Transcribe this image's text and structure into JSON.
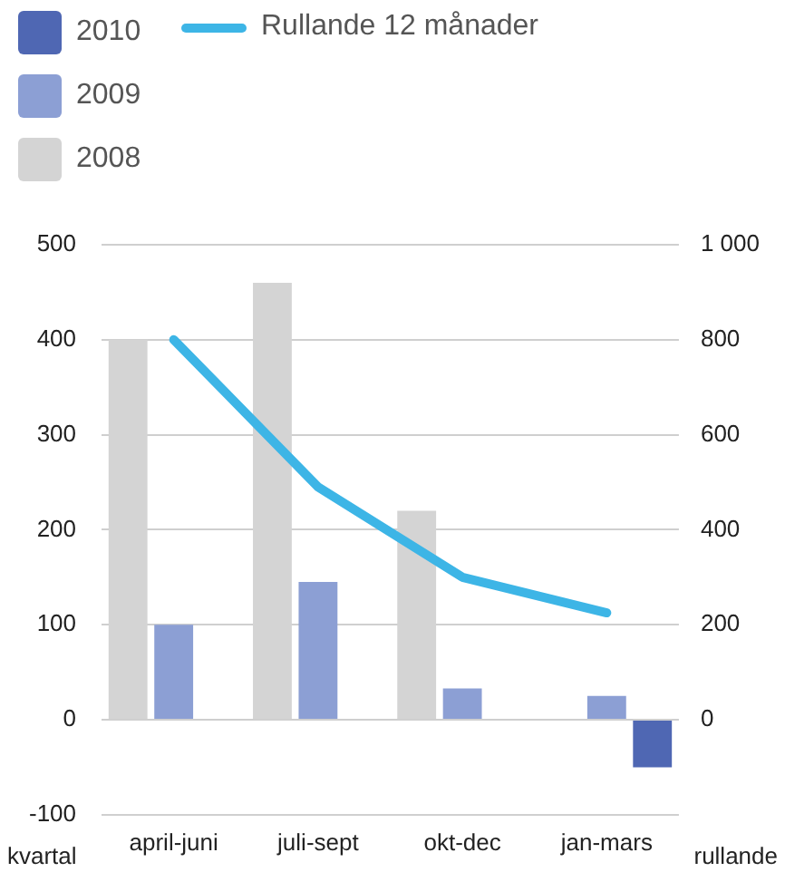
{
  "chart_data": {
    "type": "bar",
    "categories": [
      "april-juni",
      "juli-sept",
      "okt-dec",
      "jan-mars"
    ],
    "series": [
      {
        "name": "2008",
        "color": "#d4d4d4",
        "values": [
          400,
          460,
          220,
          null
        ]
      },
      {
        "name": "2009",
        "color": "#8c9fd4",
        "values": [
          100,
          145,
          33,
          25
        ]
      },
      {
        "name": "2010",
        "color": "#4f67b3",
        "values": [
          null,
          null,
          null,
          -50
        ]
      },
      {
        "name": "Rullande 12 månader",
        "type": "line",
        "axis": "y2",
        "color": "#3db5e6",
        "values": [
          800,
          490,
          300,
          225
        ]
      }
    ],
    "ylabel": "kvartal",
    "y2label": "rullande",
    "ylim": [
      -100,
      500
    ],
    "yticks": [
      -100,
      0,
      100,
      200,
      300,
      400,
      500
    ],
    "y2lim": [
      -200,
      1000
    ],
    "y2ticks": [
      0,
      200,
      400,
      600,
      800,
      {
        "value": 1000,
        "label": "1 000"
      }
    ],
    "grid": "y",
    "legend": "top left",
    "marker": "none",
    "line_style": "solid"
  }
}
